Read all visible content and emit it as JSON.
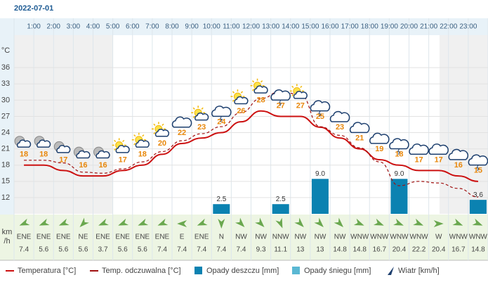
{
  "chart_data": {
    "type": "line",
    "title": "2022-07-01",
    "hour_labels": [
      "1:00",
      "2:00",
      "3:00",
      "4:00",
      "5:00",
      "6:00",
      "7:00",
      "8:00",
      "9:00",
      "10:00",
      "11:00",
      "12:00",
      "13:00",
      "14:00",
      "15:00",
      "16:00",
      "17:00",
      "18:00",
      "19:00",
      "20:00",
      "21:00",
      "22:00",
      "23:00"
    ],
    "y_unit": "°C",
    "ylim": [
      9,
      42
    ],
    "yticks": [
      12,
      15,
      18,
      21,
      24,
      27,
      30,
      33,
      36
    ],
    "y2lim": [
      0,
      46
    ],
    "series": [
      {
        "name": "Temperatura [°C]",
        "color": "#cc1111",
        "dash": false,
        "values": [
          18,
          18,
          17,
          16,
          16,
          17,
          18,
          20,
          22,
          23,
          24,
          26,
          28,
          27,
          27,
          25,
          23,
          21,
          19,
          18,
          17,
          17,
          16,
          15
        ]
      },
      {
        "name": "Temp. odczuwalna [°C]",
        "color": "#a01010",
        "dash": true,
        "values": [
          18.9,
          18.9,
          18.4,
          16.7,
          16.5,
          17.3,
          18.6,
          20.5,
          22.5,
          23.8,
          25.1,
          27.7,
          30.3,
          31.6,
          31,
          25.1,
          23.5,
          21.2,
          18.6,
          14.2,
          15,
          14.7,
          13.7,
          12.1
        ]
      },
      {
        "name": "Opady deszczu [mm]",
        "color": "#0b82b1",
        "axis": "y2",
        "values": [
          0,
          0,
          0,
          0,
          0,
          0,
          0,
          0,
          0,
          0,
          2.5,
          0,
          0,
          2.5,
          0,
          9,
          0,
          0,
          0,
          9,
          0,
          0,
          0,
          3.6
        ],
        "value_labels": [
          null,
          null,
          null,
          null,
          null,
          null,
          null,
          null,
          null,
          null,
          "2.5",
          null,
          null,
          "2.5",
          null,
          "9.0",
          null,
          null,
          null,
          "9.0",
          null,
          null,
          null,
          "3.6"
        ]
      },
      {
        "name": "Opady śniegu [mm]",
        "color": "#5ab8d3",
        "axis": "y2",
        "values": [
          0,
          0,
          0,
          0,
          0,
          0,
          0,
          0,
          0,
          0,
          0,
          0,
          0,
          0,
          0,
          0,
          0,
          0,
          0,
          0,
          0,
          0,
          0,
          0
        ]
      }
    ],
    "wind": {
      "name": "Wiatr [km/h]",
      "color": "#1d3f6e",
      "unit": [
        "km",
        "/h"
      ],
      "directions": [
        "ENE",
        "ENE",
        "ENE",
        "NE",
        "ENE",
        "ENE",
        "ENE",
        "ENE",
        "E",
        "ENE",
        "N",
        "NW",
        "NW",
        "NNW",
        "NW",
        "NW",
        "NW",
        "WNW",
        "WNW",
        "WNW",
        "WNW",
        "W",
        "WNW",
        "WNW"
      ],
      "speeds": [
        7.4,
        5.6,
        5.6,
        5.6,
        3.7,
        5.6,
        5.6,
        7.4,
        7.4,
        7.4,
        7.4,
        7.4,
        9.3,
        11.1,
        13,
        13,
        14.8,
        14.8,
        16.7,
        20.4,
        22.2,
        20.4,
        16.7,
        14.8
      ]
    }
  }
}
